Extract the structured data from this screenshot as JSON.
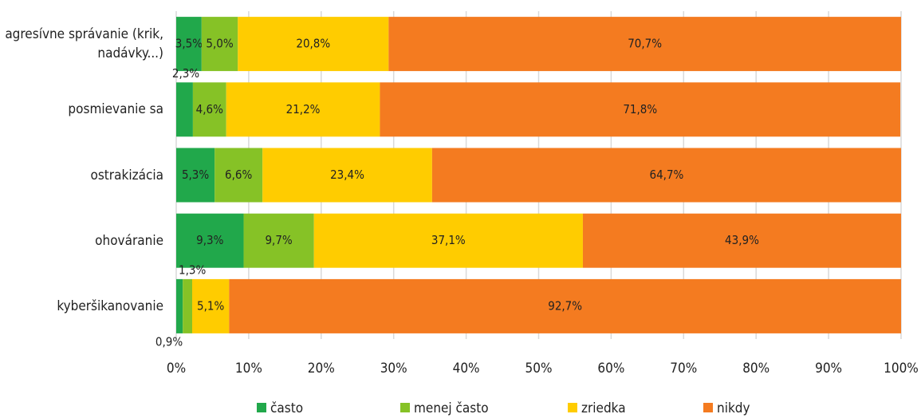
{
  "chart_data": {
    "type": "stacked-bar-horizontal",
    "categories": [
      "agresívne správanie (krik, nadávky...)",
      "posmievanie sa",
      "ostrakizácia",
      "ohováranie",
      "kyberšikanovanie"
    ],
    "series": [
      {
        "name": "často",
        "color": "#21a84b",
        "values": [
          3.5,
          2.3,
          5.3,
          9.3,
          0.9
        ],
        "value_labels": [
          "3,5%",
          "2,3%",
          "5,3%",
          "9,3%",
          "0,9%"
        ]
      },
      {
        "name": "menej často",
        "color": "#86c226",
        "values": [
          5.0,
          4.6,
          6.6,
          9.7,
          1.3
        ],
        "value_labels": [
          "5,0%",
          "4,6%",
          "6,6%",
          "9,7%",
          "1,3%"
        ]
      },
      {
        "name": "zriedka",
        "color": "#ffcc00",
        "values": [
          20.8,
          21.2,
          23.4,
          37.1,
          5.1
        ],
        "value_labels": [
          "20,8%",
          "21,2%",
          "23,4%",
          "37,1%",
          "5,1%"
        ]
      },
      {
        "name": "nikdy",
        "color": "#f47b20",
        "values": [
          70.7,
          71.8,
          64.7,
          43.9,
          92.7
        ],
        "value_labels": [
          "70,7%",
          "71,8%",
          "64,7%",
          "43,9%",
          "92,7%"
        ]
      }
    ],
    "xlim": [
      0,
      100
    ],
    "xticks": [
      {
        "value": 0,
        "label": "0%"
      },
      {
        "value": 10,
        "label": "10%"
      },
      {
        "value": 20,
        "label": "20%"
      },
      {
        "value": 30,
        "label": "30%"
      },
      {
        "value": 40,
        "label": "40%"
      },
      {
        "value": 50,
        "label": "50%"
      },
      {
        "value": 60,
        "label": "60%"
      },
      {
        "value": 70,
        "label": "70%"
      },
      {
        "value": 80,
        "label": "80%"
      },
      {
        "value": 90,
        "label": "90%"
      },
      {
        "value": 100,
        "label": "100%"
      }
    ],
    "grid": true,
    "legend": "bottom"
  }
}
